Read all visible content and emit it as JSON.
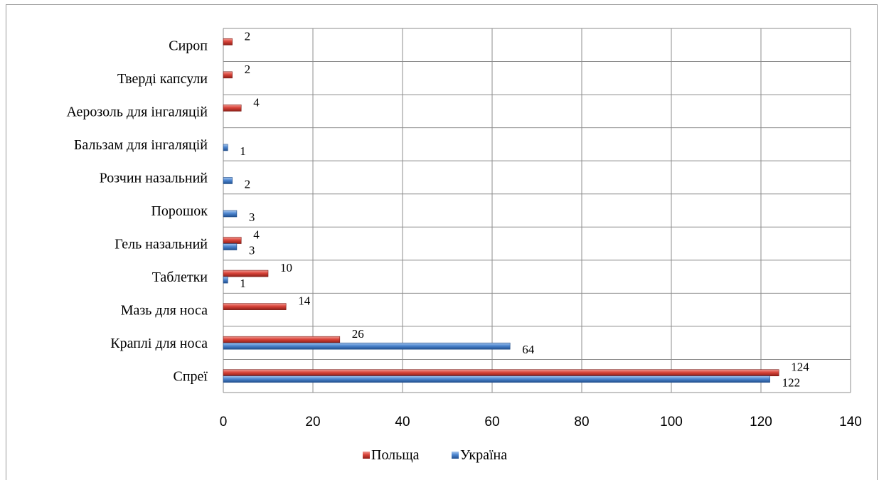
{
  "chart_data": {
    "type": "bar",
    "orientation": "horizontal",
    "categories": [
      "Спреї",
      "Краплі для носа",
      "Мазь для носа",
      "Таблетки",
      "Гель назальний",
      "Порошок",
      "Розчин назальний",
      "Бальзам для інгаляцій",
      "Аерозоль для інгаляцій",
      "Тверді капсули",
      "Сироп"
    ],
    "series": [
      {
        "name": "Польща",
        "color": "#c0392b",
        "values": [
          124,
          26,
          14,
          10,
          4,
          null,
          null,
          null,
          4,
          2,
          2
        ]
      },
      {
        "name": "Україна",
        "color": "#3a74c4",
        "values": [
          122,
          64,
          null,
          1,
          3,
          3,
          2,
          1,
          null,
          null,
          null
        ]
      }
    ],
    "xlim": [
      0,
      140
    ],
    "xticks": [
      "0",
      "20",
      "40",
      "60",
      "80",
      "100",
      "120",
      "140"
    ],
    "grid": true,
    "legend_position": "bottom",
    "title": "",
    "xlabel": "",
    "ylabel": ""
  }
}
